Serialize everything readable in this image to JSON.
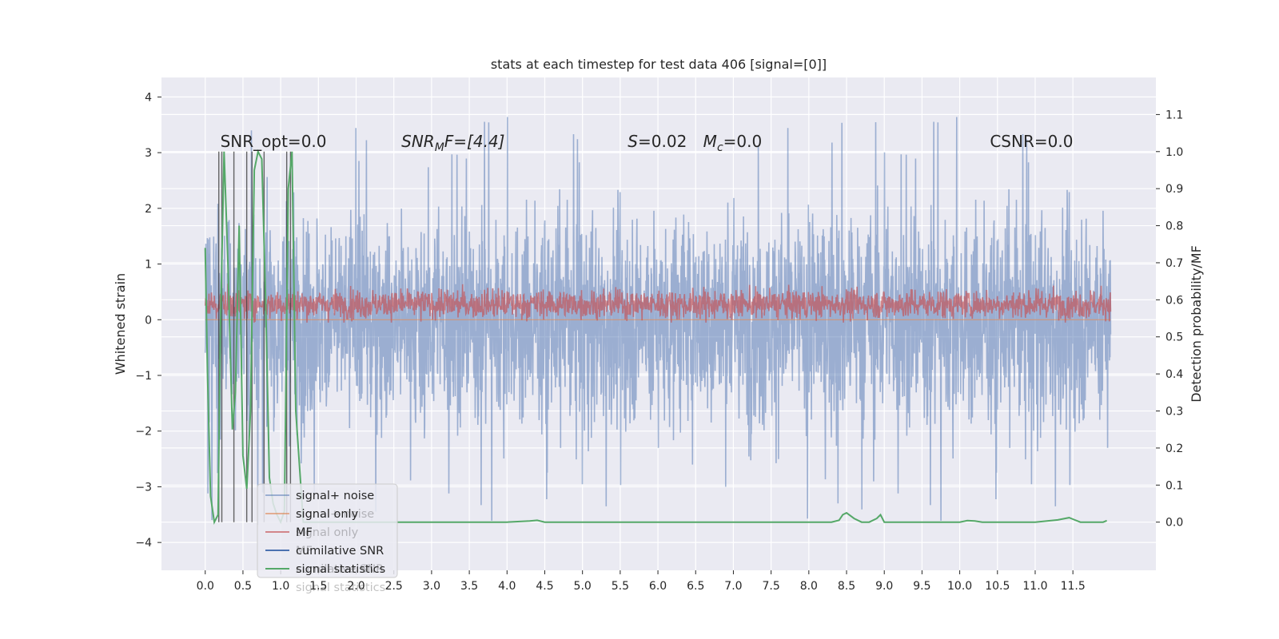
{
  "chart_data": {
    "type": "line",
    "title": "stats at each timestep for test data 406 [signal=[0]]",
    "xlabel": "",
    "ylabel": "Whitened strain",
    "y2label": "Detection probability/MF",
    "xlim": [
      -0.58,
      12.6
    ],
    "ylim": [
      -4.5,
      4.35
    ],
    "y2lim": [
      -0.13,
      1.2
    ],
    "grid": true,
    "x_ticks": [
      "0.0",
      "0.5",
      "1.0",
      "1.5",
      "2.0",
      "2.5",
      "3.0",
      "3.5",
      "4.0",
      "4.5",
      "5.0",
      "5.5",
      "6.0",
      "6.5",
      "7.0",
      "7.5",
      "8.0",
      "8.5",
      "9.0",
      "9.5",
      "10.0",
      "10.5",
      "11.0",
      "11.5"
    ],
    "y_ticks": [
      "4",
      "3",
      "2",
      "1",
      "0",
      "−1",
      "−2",
      "−3",
      "−4"
    ],
    "y2_ticks": [
      "1.1",
      "1.0",
      "0.9",
      "0.8",
      "0.7",
      "0.6",
      "0.5",
      "0.4",
      "0.3",
      "0.2",
      "0.1",
      "0.0"
    ],
    "colors": {
      "signal_noise": "#4c72b0",
      "signal_only": "#dd8452",
      "mf": "#c44e52",
      "cumulative_snr": "#4c72b0",
      "signal_statistics": "#55a868",
      "background": "#eaeaf2"
    },
    "annotations": {
      "snr_opt": "SNR_opt=0.0",
      "snr_mf_pre": "SNR",
      "snr_mf_sub": "M",
      "snr_mf_post": "F=[4.4]",
      "s_pre": "S",
      "s_post": "=0.02",
      "mc_pre": "M",
      "mc_sub": "c",
      "mc_post": "=0.0",
      "csnr": "CSNR=0.0"
    },
    "legend": {
      "placement": "lower-left",
      "entries": [
        "signal+ noise",
        "signal only",
        "MF",
        "cumilative SNR",
        "signal statistics"
      ],
      "ghost_entries": [
        "signal+ noise",
        "signal only",
        "MF",
        "cumilative SNR",
        "signal statistics"
      ]
    },
    "series": [
      {
        "name": "signal+ noise",
        "x_range": [
          0,
          12.0
        ],
        "y_range_typical": [
          -1.9,
          1.9
        ],
        "y_extreme": [
          -4.1,
          3.95
        ]
      },
      {
        "name": "signal only",
        "x_range": [
          0,
          12.0
        ],
        "values_constant": 0
      },
      {
        "name": "MF",
        "x_range": [
          0,
          12.0
        ],
        "y_range_typical": [
          0.0,
          0.7
        ]
      },
      {
        "name": "cumilative SNR",
        "x": [
          0.0,
          0.2,
          0.4,
          0.55,
          0.75,
          1.1,
          1.2
        ],
        "y2": [
          0.0,
          1.0,
          0.0,
          0.0,
          1.0,
          1.0,
          0.0
        ]
      },
      {
        "name": "signal statistics",
        "x": [
          0.0,
          0.03,
          0.07,
          0.12,
          0.17,
          0.2,
          0.25,
          0.3,
          0.36,
          0.4,
          0.45,
          0.5,
          0.55,
          0.6,
          0.65,
          0.7,
          0.75,
          0.8,
          0.85,
          0.9,
          0.95,
          1.0,
          1.05,
          1.1,
          1.15,
          1.2,
          1.3,
          1.5,
          2.0,
          3.0,
          4.0,
          4.3,
          4.4,
          4.5,
          5.0,
          6.0,
          7.0,
          8.0,
          8.3,
          8.4,
          8.45,
          8.5,
          8.6,
          8.7,
          8.8,
          8.9,
          8.95,
          9.0,
          9.1,
          10.0,
          10.1,
          10.2,
          10.3,
          11.0,
          11.3,
          11.45,
          11.5,
          11.6,
          11.7,
          11.9,
          11.95
        ],
        "y2": [
          0.74,
          0.4,
          0.07,
          0.0,
          0.02,
          0.5,
          1.0,
          0.7,
          0.25,
          0.35,
          0.8,
          0.18,
          0.09,
          0.3,
          0.95,
          1.0,
          0.98,
          0.6,
          0.12,
          0.05,
          0.02,
          0.0,
          0.03,
          0.9,
          1.0,
          0.3,
          0.0,
          0.0,
          0.0,
          0.0,
          0.0,
          0.003,
          0.005,
          0.0,
          0.0,
          0.0,
          0.0,
          0.0,
          0.0,
          0.005,
          0.02,
          0.025,
          0.01,
          0.0,
          0.0,
          0.01,
          0.02,
          0.0,
          0.0,
          0.0,
          0.004,
          0.003,
          0.0,
          0.0,
          0.006,
          0.012,
          0.008,
          0.0,
          0.0,
          0.0,
          0.004
        ]
      },
      {
        "name": "vertical markers",
        "x": [
          0.18,
          0.22,
          0.38,
          0.55,
          0.62,
          0.78,
          1.08,
          1.13
        ]
      }
    ]
  }
}
